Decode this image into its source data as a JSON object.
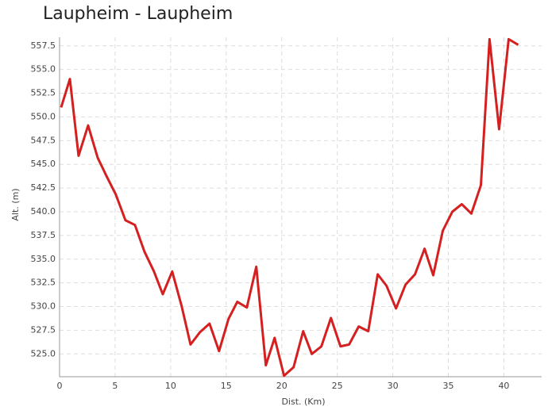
{
  "chart_data": {
    "type": "line",
    "title": "Laupheim - Laupheim",
    "x_label": "Dist. (Km)",
    "y_label": "Alt. (m)",
    "x": [
      0.14,
      0.93,
      1.71,
      2.57,
      3.43,
      4.21,
      5.07,
      5.93,
      6.79,
      7.64,
      8.5,
      9.29,
      10.14,
      11.0,
      11.79,
      12.64,
      13.5,
      14.36,
      15.21,
      16.0,
      16.86,
      17.71,
      18.57,
      19.36,
      20.21,
      21.07,
      21.93,
      22.71,
      23.57,
      24.43,
      25.29,
      26.07,
      26.93,
      27.79,
      28.64,
      29.43,
      30.29,
      31.14,
      32.0,
      32.86,
      33.64,
      34.5,
      35.36,
      36.21,
      37.07,
      37.93,
      38.71,
      39.57,
      40.43,
      41.29
    ],
    "series": [
      {
        "color": "#d42020",
        "values": [
          551.0,
          554.0,
          545.9,
          549.1,
          545.7,
          543.8,
          541.8,
          539.1,
          538.6,
          535.8,
          533.7,
          531.3,
          533.7,
          530.0,
          526.0,
          527.3,
          528.2,
          525.3,
          528.7,
          530.5,
          529.9,
          534.2,
          523.8,
          526.7,
          522.7,
          523.6,
          527.4,
          525.0,
          525.8,
          528.8,
          525.8,
          526.0,
          527.9,
          527.4,
          533.4,
          532.2,
          529.8,
          532.3,
          533.4,
          536.1,
          533.3,
          538.0,
          540.0,
          540.8,
          539.8,
          542.8,
          558.2,
          548.7,
          558.2,
          557.6
        ]
      }
    ],
    "xlim": [
      0,
      43.4
    ],
    "xticks": [
      0,
      5,
      10,
      15,
      20,
      25,
      30,
      35,
      40
    ],
    "ylim": [
      522.6,
      558.4
    ],
    "yticks": [
      {
        "value": 525,
        "label": "525.0"
      },
      527.5,
      {
        "value": 530,
        "label": "530.0"
      },
      532.5,
      {
        "value": 535,
        "label": "535.0"
      },
      537.5,
      {
        "value": 540,
        "label": "540.0"
      },
      542.5,
      {
        "value": 545,
        "label": "545.0"
      },
      547.5,
      {
        "value": 550,
        "label": "550.0"
      },
      552.5,
      {
        "value": 555,
        "label": "555.0"
      },
      557.5
    ],
    "grid": true
  }
}
